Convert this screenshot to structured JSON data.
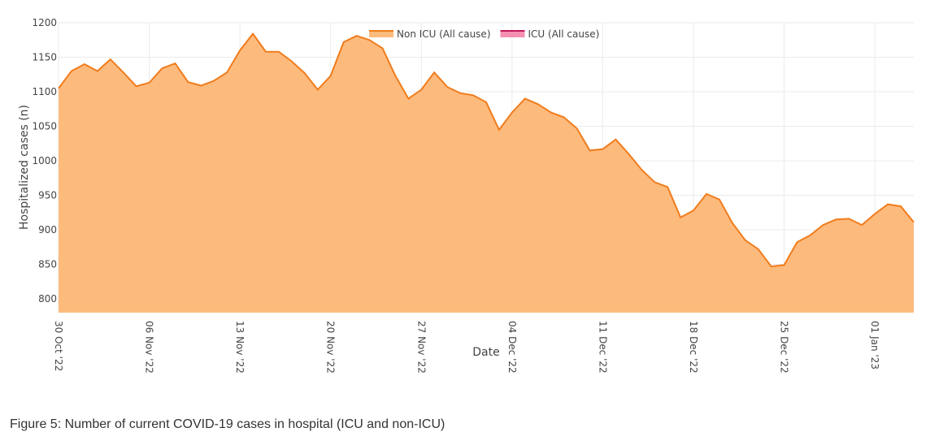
{
  "chart_data": {
    "type": "area",
    "y_label": "Hospitalized cases (n)",
    "x_label": "Date",
    "caption": "Figure 5: Number of current COVID-19 cases in hospital (ICU and non-ICU)",
    "x": [
      "2022-10-30",
      "2022-10-31",
      "2022-11-01",
      "2022-11-02",
      "2022-11-03",
      "2022-11-04",
      "2022-11-05",
      "2022-11-06",
      "2022-11-07",
      "2022-11-08",
      "2022-11-09",
      "2022-11-10",
      "2022-11-11",
      "2022-11-12",
      "2022-11-13",
      "2022-11-14",
      "2022-11-15",
      "2022-11-16",
      "2022-11-17",
      "2022-11-18",
      "2022-11-19",
      "2022-11-20",
      "2022-11-21",
      "2022-11-22",
      "2022-11-23",
      "2022-11-24",
      "2022-11-25",
      "2022-11-26",
      "2022-11-27",
      "2022-11-28",
      "2022-11-29",
      "2022-11-30",
      "2022-12-01",
      "2022-12-02",
      "2022-12-03",
      "2022-12-04",
      "2022-12-05",
      "2022-12-06",
      "2022-12-07",
      "2022-12-08",
      "2022-12-09",
      "2022-12-10",
      "2022-12-11",
      "2022-12-12",
      "2022-12-13",
      "2022-12-14",
      "2022-12-15",
      "2022-12-16",
      "2022-12-17",
      "2022-12-18",
      "2022-12-19",
      "2022-12-20",
      "2022-12-21",
      "2022-12-22",
      "2022-12-23",
      "2022-12-24",
      "2022-12-25",
      "2022-12-26",
      "2022-12-27",
      "2022-12-28",
      "2022-12-29",
      "2022-12-30",
      "2022-12-31",
      "2023-01-01",
      "2023-01-02",
      "2023-01-03",
      "2023-01-04"
    ],
    "series": [
      {
        "name": "Non ICU (All cause)",
        "color": "#f07c1c",
        "fill": "#fdba7d",
        "values": [
          1105,
          1130,
          1140,
          1130,
          1147,
          1128,
          1108,
          1113,
          1134,
          1141,
          1114,
          1109,
          1116,
          1128,
          1160,
          1184,
          1158,
          1158,
          1144,
          1127,
          1103,
          1123,
          1172,
          1181,
          1175,
          1163,
          1123,
          1090,
          1103,
          1128,
          1107,
          1098,
          1095,
          1085,
          1045,
          1070,
          1090,
          1082,
          1070,
          1063,
          1047,
          1015,
          1017,
          1031,
          1010,
          987,
          969,
          962,
          918,
          928,
          952,
          944,
          910,
          885,
          872,
          847,
          849,
          882,
          892,
          907,
          915,
          916,
          907,
          923,
          937,
          934,
          911
        ]
      },
      {
        "name": "ICU (All cause)",
        "color": "#c2185b",
        "fill": "#f48fb1",
        "values": [
          null,
          null,
          null,
          null,
          null,
          null,
          null,
          null,
          null,
          null,
          null,
          null,
          null,
          null,
          null,
          null,
          null,
          null,
          null,
          null,
          null,
          null,
          null,
          null,
          null,
          null,
          null,
          null,
          null,
          null,
          null,
          null,
          null,
          null,
          null,
          null,
          null,
          null,
          null,
          null,
          null,
          null,
          null,
          null,
          null,
          null,
          null,
          null,
          null,
          null,
          null,
          null,
          null,
          null,
          null,
          null,
          null,
          null,
          null,
          null,
          null,
          null,
          null,
          null,
          null,
          null,
          null
        ]
      }
    ],
    "xlim": [
      "2022-10-30",
      "2023-01-04"
    ],
    "xticks": [
      {
        "value": "2022-10-30",
        "label": "30 Oct '22"
      },
      {
        "value": "2022-11-06",
        "label": "06 Nov '22"
      },
      {
        "value": "2022-11-13",
        "label": "13 Nov '22"
      },
      {
        "value": "2022-11-20",
        "label": "20 Nov '22"
      },
      {
        "value": "2022-11-27",
        "label": "27 Nov '22"
      },
      {
        "value": "2022-12-04",
        "label": "04 Dec '22"
      },
      {
        "value": "2022-12-11",
        "label": "11 Dec '22"
      },
      {
        "value": "2022-12-18",
        "label": "18 Dec '22"
      },
      {
        "value": "2022-12-25",
        "label": "25 Dec '22"
      },
      {
        "value": "2023-01-01",
        "label": "01 Jan '23"
      }
    ],
    "ylim": [
      780,
      1200
    ],
    "yticks": [
      800,
      850,
      900,
      950,
      1000,
      1050,
      1100,
      1150,
      1200
    ],
    "grid": true,
    "legend": "top"
  }
}
